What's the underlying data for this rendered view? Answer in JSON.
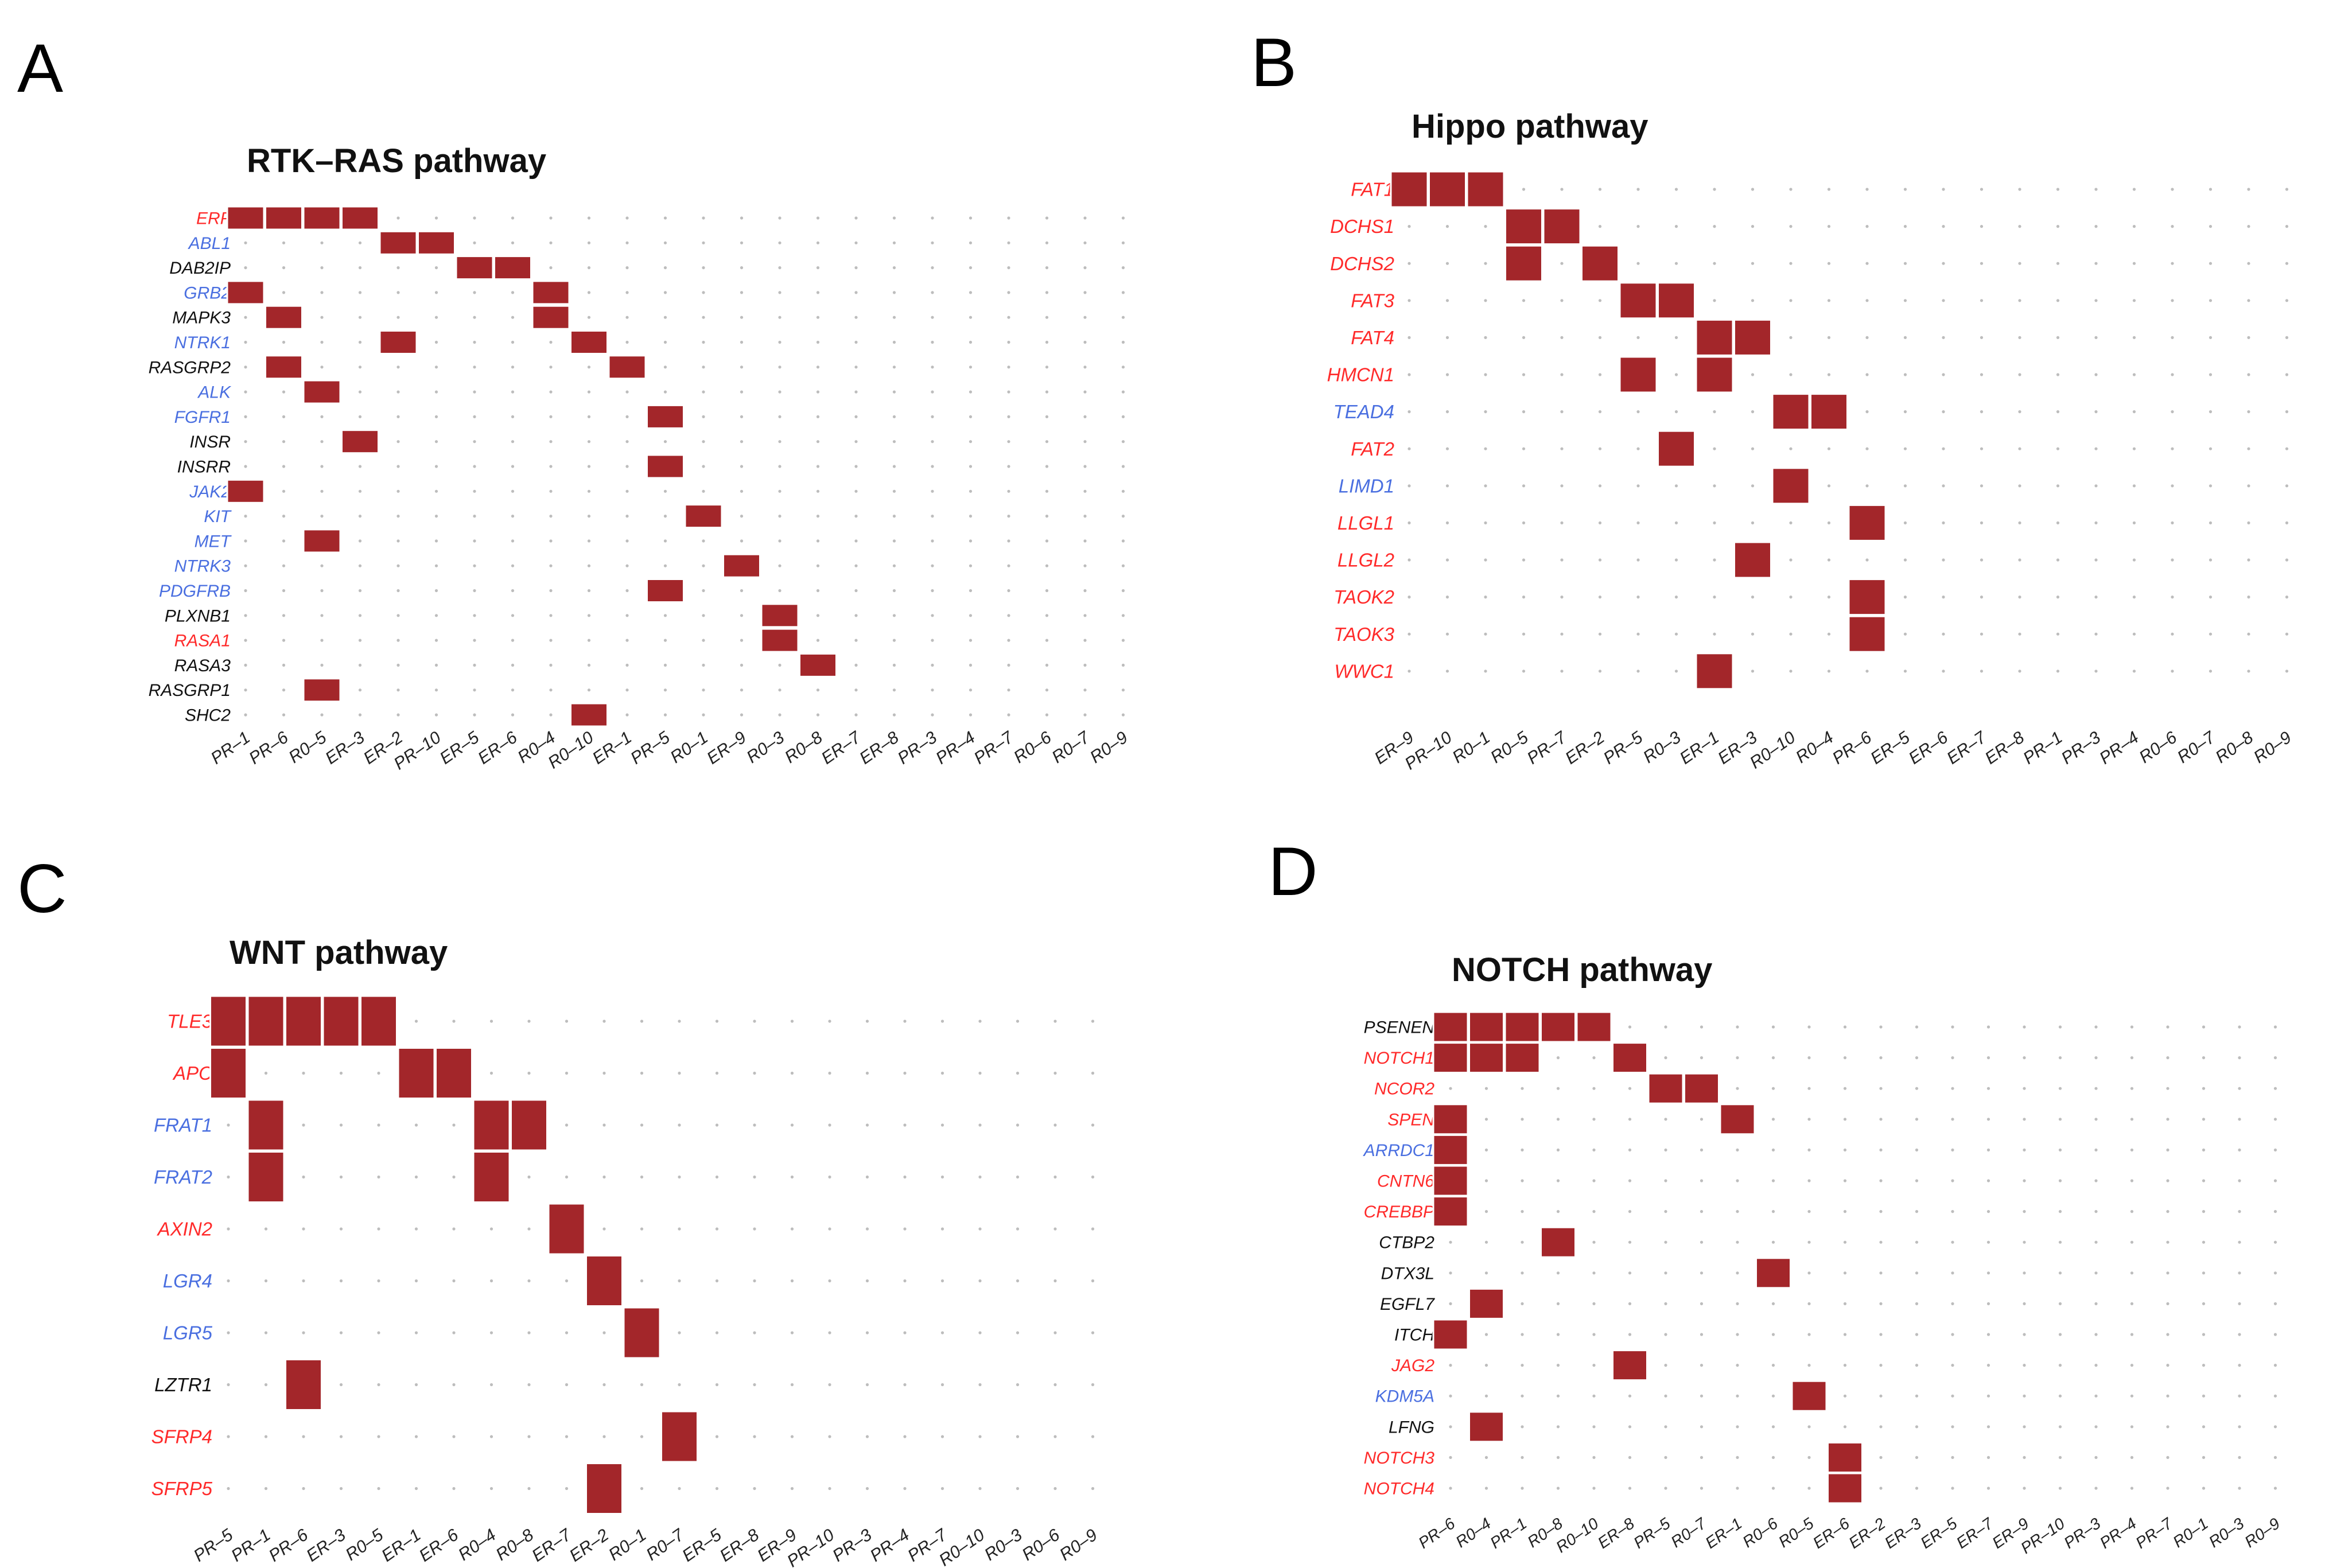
{
  "colors": {
    "cell": "#a3262a",
    "dot": "#bdbdbd",
    "red_label": "#ff2a2a",
    "blue_label": "#4a6fe0",
    "black_label": "#111111"
  },
  "chart_data": [
    {
      "panel": "A",
      "title": "RTK–RAS pathway",
      "type": "heatmap",
      "genes": [
        {
          "name": "ERF",
          "color": "red"
        },
        {
          "name": "ABL1",
          "color": "blue"
        },
        {
          "name": "DAB2IP",
          "color": "black"
        },
        {
          "name": "GRB2",
          "color": "blue"
        },
        {
          "name": "MAPK3",
          "color": "black"
        },
        {
          "name": "NTRK1",
          "color": "blue"
        },
        {
          "name": "RASGRP2",
          "color": "black"
        },
        {
          "name": "ALK",
          "color": "blue"
        },
        {
          "name": "FGFR1",
          "color": "blue"
        },
        {
          "name": "INSR",
          "color": "black"
        },
        {
          "name": "INSRR",
          "color": "black"
        },
        {
          "name": "JAK2",
          "color": "blue"
        },
        {
          "name": "KIT",
          "color": "blue"
        },
        {
          "name": "MET",
          "color": "blue"
        },
        {
          "name": "NTRK3",
          "color": "blue"
        },
        {
          "name": "PDGFRB",
          "color": "blue"
        },
        {
          "name": "PLXNB1",
          "color": "black"
        },
        {
          "name": "RASA1",
          "color": "red"
        },
        {
          "name": "RASA3",
          "color": "black"
        },
        {
          "name": "RASGRP1",
          "color": "black"
        },
        {
          "name": "SHC2",
          "color": "black"
        }
      ],
      "samples": [
        "PR–1",
        "PR–6",
        "R0–5",
        "ER–3",
        "ER–2",
        "PR–10",
        "ER–5",
        "ER–6",
        "R0–4",
        "R0–10",
        "ER–1",
        "PR–5",
        "R0–1",
        "ER–9",
        "R0–3",
        "R0–8",
        "ER–7",
        "ER–8",
        "PR–3",
        "PR–4",
        "PR–7",
        "R0–6",
        "R0–7",
        "R0–9"
      ],
      "cells": [
        [
          0,
          0
        ],
        [
          0,
          1
        ],
        [
          0,
          2
        ],
        [
          0,
          3
        ],
        [
          1,
          4
        ],
        [
          1,
          5
        ],
        [
          2,
          6
        ],
        [
          2,
          7
        ],
        [
          3,
          0
        ],
        [
          3,
          8
        ],
        [
          4,
          1
        ],
        [
          4,
          8
        ],
        [
          5,
          4
        ],
        [
          5,
          9
        ],
        [
          6,
          1
        ],
        [
          6,
          10
        ],
        [
          7,
          2
        ],
        [
          8,
          11
        ],
        [
          9,
          3
        ],
        [
          10,
          11
        ],
        [
          11,
          0
        ],
        [
          12,
          12
        ],
        [
          13,
          2
        ],
        [
          14,
          13
        ],
        [
          15,
          11
        ],
        [
          16,
          14
        ],
        [
          17,
          14
        ],
        [
          18,
          15
        ],
        [
          19,
          2
        ],
        [
          20,
          9
        ]
      ]
    },
    {
      "panel": "B",
      "title": "Hippo pathway",
      "type": "heatmap",
      "genes": [
        {
          "name": "FAT1",
          "color": "red"
        },
        {
          "name": "DCHS1",
          "color": "red"
        },
        {
          "name": "DCHS2",
          "color": "red"
        },
        {
          "name": "FAT3",
          "color": "red"
        },
        {
          "name": "FAT4",
          "color": "red"
        },
        {
          "name": "HMCN1",
          "color": "red"
        },
        {
          "name": "TEAD4",
          "color": "blue"
        },
        {
          "name": "FAT2",
          "color": "red"
        },
        {
          "name": "LIMD1",
          "color": "blue"
        },
        {
          "name": "LLGL1",
          "color": "red"
        },
        {
          "name": "LLGL2",
          "color": "red"
        },
        {
          "name": "TAOK2",
          "color": "red"
        },
        {
          "name": "TAOK3",
          "color": "red"
        },
        {
          "name": "WWC1",
          "color": "red"
        }
      ],
      "samples": [
        "ER–9",
        "PR–10",
        "R0–1",
        "R0–5",
        "PR–7",
        "ER–2",
        "PR–5",
        "R0–3",
        "ER–1",
        "ER–3",
        "R0–10",
        "R0–4",
        "PR–6",
        "ER–5",
        "ER–6",
        "ER–7",
        "ER–8",
        "PR–1",
        "PR–3",
        "PR–4",
        "R0–6",
        "R0–7",
        "R0–8",
        "R0–9"
      ],
      "cells": [
        [
          0,
          0
        ],
        [
          0,
          1
        ],
        [
          0,
          2
        ],
        [
          1,
          3
        ],
        [
          1,
          4
        ],
        [
          2,
          3
        ],
        [
          2,
          5
        ],
        [
          3,
          6
        ],
        [
          3,
          7
        ],
        [
          4,
          8
        ],
        [
          4,
          9
        ],
        [
          5,
          6
        ],
        [
          5,
          8
        ],
        [
          6,
          10
        ],
        [
          6,
          11
        ],
        [
          7,
          7
        ],
        [
          8,
          10
        ],
        [
          9,
          12
        ],
        [
          10,
          9
        ],
        [
          11,
          12
        ],
        [
          12,
          12
        ],
        [
          13,
          8
        ]
      ]
    },
    {
      "panel": "C",
      "title": "WNT pathway",
      "type": "heatmap",
      "genes": [
        {
          "name": "TLE3",
          "color": "red"
        },
        {
          "name": "APC",
          "color": "red"
        },
        {
          "name": "FRAT1",
          "color": "blue"
        },
        {
          "name": "FRAT2",
          "color": "blue"
        },
        {
          "name": "AXIN2",
          "color": "red"
        },
        {
          "name": "LGR4",
          "color": "blue"
        },
        {
          "name": "LGR5",
          "color": "blue"
        },
        {
          "name": "LZTR1",
          "color": "black"
        },
        {
          "name": "SFRP4",
          "color": "red"
        },
        {
          "name": "SFRP5",
          "color": "red"
        }
      ],
      "samples": [
        "PR–5",
        "PR–1",
        "PR–6",
        "ER–3",
        "R0–5",
        "ER–1",
        "ER–6",
        "R0–4",
        "R0–8",
        "ER–7",
        "ER–2",
        "R0–1",
        "R0–7",
        "ER–5",
        "ER–8",
        "ER–9",
        "PR–10",
        "PR–3",
        "PR–4",
        "PR–7",
        "R0–10",
        "R0–3",
        "R0–6",
        "R0–9"
      ],
      "cells": [
        [
          0,
          0
        ],
        [
          0,
          1
        ],
        [
          0,
          2
        ],
        [
          0,
          3
        ],
        [
          0,
          4
        ],
        [
          1,
          0
        ],
        [
          1,
          5
        ],
        [
          1,
          6
        ],
        [
          2,
          1
        ],
        [
          2,
          7
        ],
        [
          2,
          8
        ],
        [
          3,
          1
        ],
        [
          3,
          7
        ],
        [
          4,
          9
        ],
        [
          5,
          10
        ],
        [
          6,
          11
        ],
        [
          7,
          2
        ],
        [
          8,
          12
        ],
        [
          9,
          10
        ]
      ]
    },
    {
      "panel": "D",
      "title": "NOTCH pathway",
      "type": "heatmap",
      "genes": [
        {
          "name": "PSENEN",
          "color": "black"
        },
        {
          "name": "NOTCH1",
          "color": "red"
        },
        {
          "name": "NCOR2",
          "color": "red"
        },
        {
          "name": "SPEN",
          "color": "red"
        },
        {
          "name": "ARRDC1",
          "color": "blue"
        },
        {
          "name": "CNTN6",
          "color": "red"
        },
        {
          "name": "CREBBP",
          "color": "red"
        },
        {
          "name": "CTBP2",
          "color": "black"
        },
        {
          "name": "DTX3L",
          "color": "black"
        },
        {
          "name": "EGFL7",
          "color": "black"
        },
        {
          "name": "ITCH",
          "color": "black"
        },
        {
          "name": "JAG2",
          "color": "red"
        },
        {
          "name": "KDM5A",
          "color": "blue"
        },
        {
          "name": "LFNG",
          "color": "black"
        },
        {
          "name": "NOTCH3",
          "color": "red"
        },
        {
          "name": "NOTCH4",
          "color": "red"
        }
      ],
      "samples": [
        "PR–6",
        "R0–4",
        "PR–1",
        "R0–8",
        "R0–10",
        "ER–8",
        "PR–5",
        "R0–7",
        "ER–1",
        "R0–6",
        "R0–5",
        "ER–6",
        "ER–2",
        "ER–3",
        "ER–5",
        "ER–7",
        "ER–9",
        "PR–10",
        "PR–3",
        "PR–4",
        "PR–7",
        "R0–1",
        "R0–3",
        "R0–9"
      ],
      "cells": [
        [
          0,
          0
        ],
        [
          0,
          1
        ],
        [
          0,
          2
        ],
        [
          0,
          3
        ],
        [
          0,
          4
        ],
        [
          1,
          0
        ],
        [
          1,
          1
        ],
        [
          1,
          2
        ],
        [
          1,
          5
        ],
        [
          2,
          6
        ],
        [
          2,
          7
        ],
        [
          3,
          0
        ],
        [
          3,
          8
        ],
        [
          4,
          0
        ],
        [
          5,
          0
        ],
        [
          6,
          0
        ],
        [
          7,
          3
        ],
        [
          8,
          9
        ],
        [
          9,
          1
        ],
        [
          10,
          0
        ],
        [
          11,
          5
        ],
        [
          12,
          10
        ],
        [
          13,
          1
        ],
        [
          14,
          11
        ],
        [
          15,
          11
        ]
      ]
    }
  ]
}
